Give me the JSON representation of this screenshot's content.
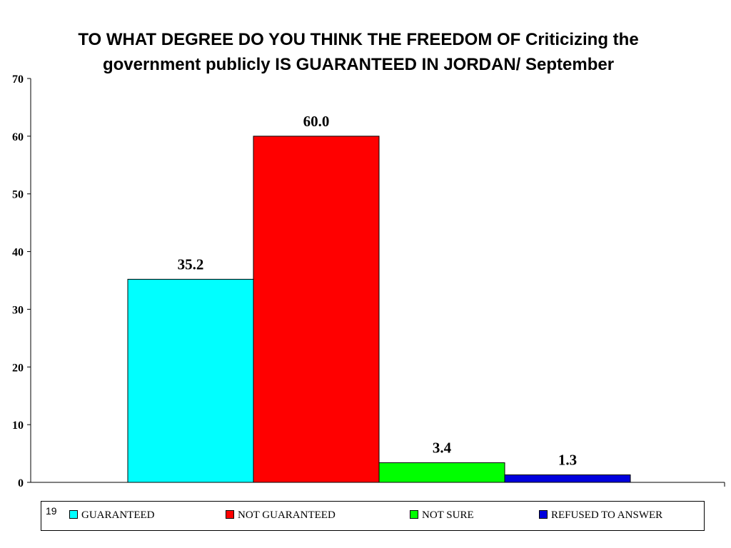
{
  "slide_number": "19",
  "title": {
    "line1": "TO WHAT DEGREE DO YOU THINK  THE FREEDOM OF Criticizing the",
    "line2": "government publicly  IS GUARANTEED IN JORDAN/ September"
  },
  "chart_data": {
    "type": "bar",
    "title": "TO WHAT DEGREE DO YOU THINK  THE FREEDOM OF Criticizing the government publicly  IS GUARANTEED IN JORDAN/ September",
    "categories": [
      "GUARANTEED",
      "NOT GUARANTEED",
      "NOT SURE",
      "REFUSED TO ANSWER"
    ],
    "values": [
      35.2,
      60.0,
      3.4,
      1.3
    ],
    "data_labels": [
      "35.2",
      "60.0",
      "3.4",
      "1.3"
    ],
    "colors": [
      "#00ffff",
      "#ff0000",
      "#00ff00",
      "#0000dd"
    ],
    "yticks": [
      "0",
      "10",
      "20",
      "30",
      "40",
      "50",
      "60",
      "70"
    ],
    "ylim": [
      0,
      70
    ],
    "grid": false,
    "legend_position": "bottom"
  },
  "legend": [
    {
      "label": "GUARANTEED",
      "color": "#00ffff"
    },
    {
      "label": "NOT GUARANTEED",
      "color": "#ff0000"
    },
    {
      "label": "NOT SURE",
      "color": "#00ff00"
    },
    {
      "label": "REFUSED TO ANSWER",
      "color": "#0000dd"
    }
  ]
}
